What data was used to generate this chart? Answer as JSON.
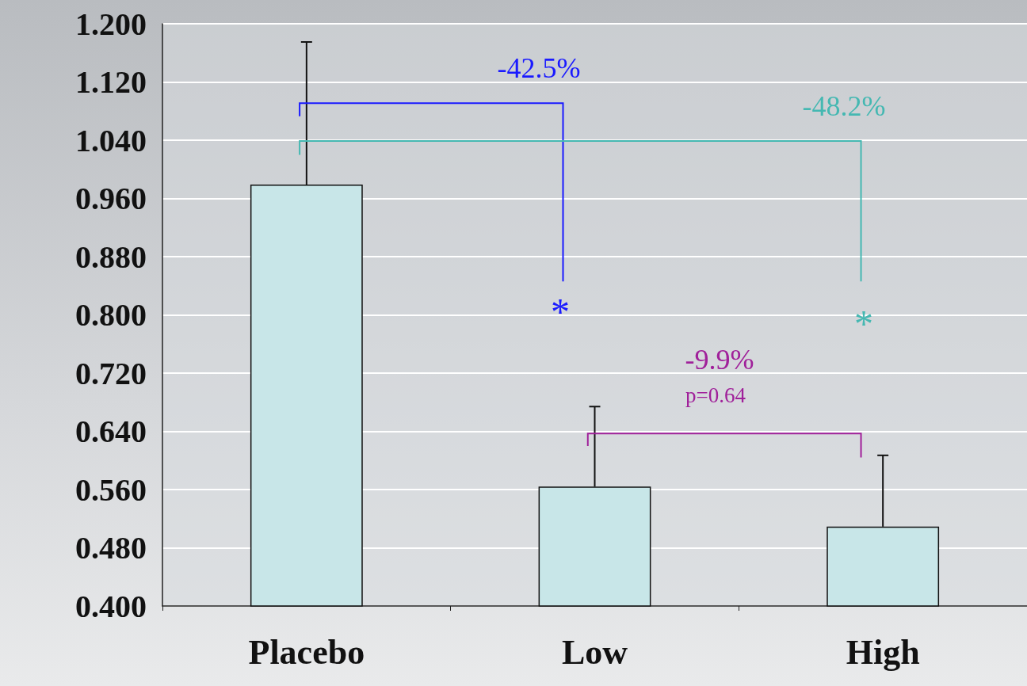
{
  "chart_data": {
    "type": "bar",
    "categories": [
      "Placebo",
      "Low",
      "High"
    ],
    "values": [
      0.979,
      0.564,
      0.509
    ],
    "errors": [
      [
        0.979,
        1.175
      ],
      [
        0.564,
        0.674
      ],
      [
        0.509,
        0.607
      ]
    ],
    "color": "#c8e6e8",
    "ylim": [
      0.4,
      1.2
    ],
    "yticks": [
      {
        "value": 0.4,
        "label": "0.400"
      },
      {
        "value": 0.48,
        "label": "0.480"
      },
      {
        "value": 0.56,
        "label": "0.560"
      },
      {
        "value": 0.64,
        "label": "0.640"
      },
      {
        "value": 0.72,
        "label": "0.720"
      },
      {
        "value": 0.8,
        "label": "0.800"
      },
      {
        "value": 0.88,
        "label": "0.880"
      },
      {
        "value": 0.96,
        "label": "0.960"
      },
      {
        "value": 1.04,
        "label": "1.040"
      },
      {
        "value": 1.12,
        "label": "1.120"
      },
      {
        "value": 1.2,
        "label": "1.200"
      }
    ],
    "grid": "y",
    "annotations": [
      "-42.5%",
      "*",
      "-48.2%",
      "*",
      "-9.9%",
      "p=0.64"
    ]
  }
}
